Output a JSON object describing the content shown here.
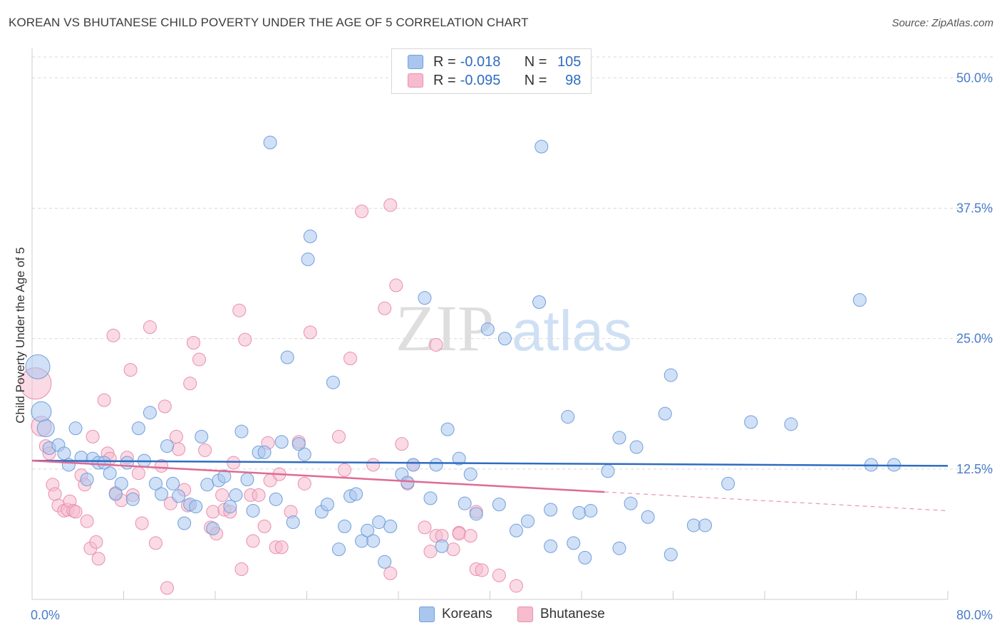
{
  "title": "KOREAN VS BHUTANESE CHILD POVERTY UNDER THE AGE OF 5 CORRELATION CHART",
  "source": "Source: ZipAtlas.com",
  "watermark": {
    "part1": "ZIP",
    "part2": "atlas"
  },
  "colors": {
    "korean_fill": "#a9c6ee",
    "korean_stroke": "#6f9fdc",
    "korean_line": "#2f6cc0",
    "bhutanese_fill": "#f6bccd",
    "bhutanese_stroke": "#e98fad",
    "bhutanese_line": "#e06a94",
    "tick_text": "#4a7cc8",
    "grid": "#d9d9d9"
  },
  "legend": {
    "rows": [
      {
        "r_label": "R =",
        "r_value": "-0.018",
        "n_label": "N =",
        "n_value": "105"
      },
      {
        "r_label": "R =",
        "r_value": "-0.095",
        "n_label": "N =",
        "n_value": "98"
      }
    ]
  },
  "bottom_legend": [
    "Koreans",
    "Bhutanese"
  ],
  "chart_data": {
    "type": "scatter",
    "title": "KOREAN VS BHUTANESE CHILD POVERTY UNDER THE AGE OF 5 CORRELATION CHART",
    "xlabel": "",
    "ylabel": "Child Poverty Under the Age of 5",
    "xlim": [
      0,
      80
    ],
    "ylim": [
      0,
      52
    ],
    "x_tick_labels": [
      "0.0%",
      "80.0%"
    ],
    "y_ticks": [
      12.5,
      25.0,
      37.5,
      50.0
    ],
    "y_tick_labels": [
      "12.5%",
      "25.0%",
      "37.5%",
      "50.0%"
    ],
    "grid": "horizontal dashed",
    "legend_placement": "top-center",
    "series": [
      {
        "name": "Koreans",
        "r": -0.018,
        "n": 105,
        "trend": {
          "x": [
            0,
            80
          ],
          "y": [
            13.3,
            12.8
          ]
        },
        "points": [
          [
            0.5,
            22.3
          ],
          [
            0.8,
            18.0
          ],
          [
            1.2,
            16.4
          ],
          [
            1.5,
            14.5
          ],
          [
            2.3,
            14.8
          ],
          [
            2.8,
            14.0
          ],
          [
            3.2,
            12.9
          ],
          [
            3.8,
            16.4
          ],
          [
            4.3,
            13.6
          ],
          [
            4.8,
            11.5
          ],
          [
            5.3,
            13.5
          ],
          [
            5.8,
            13.1
          ],
          [
            6.3,
            13.1
          ],
          [
            6.8,
            12.1
          ],
          [
            7.3,
            10.1
          ],
          [
            7.8,
            11.1
          ],
          [
            8.3,
            13.1
          ],
          [
            8.8,
            9.6
          ],
          [
            9.3,
            16.4
          ],
          [
            9.8,
            13.3
          ],
          [
            10.3,
            17.9
          ],
          [
            10.8,
            11.1
          ],
          [
            11.3,
            10.1
          ],
          [
            11.8,
            14.7
          ],
          [
            12.3,
            11.1
          ],
          [
            12.8,
            9.9
          ],
          [
            13.3,
            7.3
          ],
          [
            13.8,
            9.1
          ],
          [
            14.3,
            8.9
          ],
          [
            14.8,
            15.6
          ],
          [
            15.3,
            11.0
          ],
          [
            15.8,
            6.8
          ],
          [
            16.3,
            11.4
          ],
          [
            16.8,
            11.8
          ],
          [
            17.3,
            8.9
          ],
          [
            17.8,
            10.0
          ],
          [
            18.3,
            16.1
          ],
          [
            18.8,
            11.5
          ],
          [
            19.3,
            8.5
          ],
          [
            19.8,
            14.1
          ],
          [
            20.3,
            14.1
          ],
          [
            20.8,
            43.8
          ],
          [
            21.3,
            9.6
          ],
          [
            21.8,
            15.1
          ],
          [
            22.3,
            23.2
          ],
          [
            22.8,
            7.4
          ],
          [
            23.3,
            14.9
          ],
          [
            23.8,
            13.9
          ],
          [
            24.1,
            32.6
          ],
          [
            24.3,
            34.8
          ],
          [
            25.3,
            8.4
          ],
          [
            25.8,
            9.1
          ],
          [
            26.3,
            20.8
          ],
          [
            26.8,
            4.8
          ],
          [
            27.3,
            7.0
          ],
          [
            27.8,
            9.9
          ],
          [
            28.3,
            10.1
          ],
          [
            28.8,
            5.6
          ],
          [
            29.3,
            6.6
          ],
          [
            29.8,
            5.6
          ],
          [
            30.3,
            7.4
          ],
          [
            30.8,
            3.6
          ],
          [
            31.3,
            7.0
          ],
          [
            32.3,
            12.0
          ],
          [
            32.8,
            11.2
          ],
          [
            33.3,
            12.9
          ],
          [
            34.3,
            28.9
          ],
          [
            34.8,
            9.7
          ],
          [
            35.3,
            12.9
          ],
          [
            35.8,
            5.1
          ],
          [
            36.3,
            16.3
          ],
          [
            37.3,
            13.5
          ],
          [
            37.8,
            9.2
          ],
          [
            38.3,
            12.0
          ],
          [
            38.8,
            8.2
          ],
          [
            39.8,
            25.9
          ],
          [
            40.8,
            9.1
          ],
          [
            41.3,
            25.0
          ],
          [
            42.3,
            6.6
          ],
          [
            43.3,
            7.5
          ],
          [
            44.3,
            28.5
          ],
          [
            44.5,
            43.4
          ],
          [
            45.3,
            8.6
          ],
          [
            45.3,
            5.1
          ],
          [
            46.8,
            17.5
          ],
          [
            47.3,
            5.4
          ],
          [
            47.8,
            8.3
          ],
          [
            48.3,
            4.0
          ],
          [
            48.8,
            8.5
          ],
          [
            50.3,
            12.3
          ],
          [
            51.3,
            15.5
          ],
          [
            51.3,
            4.9
          ],
          [
            52.3,
            9.2
          ],
          [
            52.8,
            14.6
          ],
          [
            53.8,
            7.9
          ],
          [
            55.3,
            17.8
          ],
          [
            55.8,
            21.5
          ],
          [
            55.8,
            4.3
          ],
          [
            57.8,
            7.1
          ],
          [
            58.8,
            7.1
          ],
          [
            60.8,
            11.1
          ],
          [
            62.8,
            17.0
          ],
          [
            66.3,
            16.8
          ],
          [
            72.3,
            28.7
          ],
          [
            73.3,
            12.9
          ],
          [
            75.3,
            12.9
          ]
        ]
      },
      {
        "name": "Bhutanese",
        "r": -0.095,
        "n": 98,
        "trend": {
          "x": [
            0,
            50
          ],
          "y": [
            13.3,
            10.3
          ],
          "dashed_extension": {
            "x": [
              50,
              80
            ],
            "y": [
              10.3,
              8.5
            ]
          }
        },
        "points": [
          [
            0.3,
            20.7
          ],
          [
            0.8,
            16.6
          ],
          [
            1.2,
            14.7
          ],
          [
            1.5,
            14.0
          ],
          [
            1.8,
            11.0
          ],
          [
            2.0,
            10.1
          ],
          [
            2.3,
            9.0
          ],
          [
            2.8,
            8.5
          ],
          [
            3.1,
            8.6
          ],
          [
            3.3,
            9.4
          ],
          [
            3.6,
            8.5
          ],
          [
            3.8,
            8.4
          ],
          [
            4.3,
            11.9
          ],
          [
            4.6,
            11.0
          ],
          [
            4.8,
            7.5
          ],
          [
            5.1,
            4.9
          ],
          [
            5.3,
            15.6
          ],
          [
            5.6,
            5.5
          ],
          [
            5.8,
            3.9
          ],
          [
            6.3,
            19.1
          ],
          [
            6.6,
            14.0
          ],
          [
            6.8,
            13.5
          ],
          [
            7.1,
            25.3
          ],
          [
            7.3,
            10.2
          ],
          [
            7.8,
            9.5
          ],
          [
            8.3,
            13.6
          ],
          [
            8.6,
            22.0
          ],
          [
            8.8,
            10.0
          ],
          [
            9.3,
            12.1
          ],
          [
            9.6,
            7.3
          ],
          [
            10.3,
            26.1
          ],
          [
            10.8,
            5.4
          ],
          [
            11.3,
            12.8
          ],
          [
            11.6,
            18.5
          ],
          [
            11.8,
            1.1
          ],
          [
            12.1,
            9.2
          ],
          [
            12.6,
            15.6
          ],
          [
            12.8,
            14.4
          ],
          [
            13.3,
            10.5
          ],
          [
            13.6,
            9.0
          ],
          [
            13.8,
            20.7
          ],
          [
            14.1,
            24.6
          ],
          [
            14.6,
            23.0
          ],
          [
            15.1,
            14.3
          ],
          [
            15.6,
            6.9
          ],
          [
            15.8,
            8.4
          ],
          [
            16.1,
            6.3
          ],
          [
            16.6,
            10.0
          ],
          [
            16.8,
            8.6
          ],
          [
            17.3,
            8.4
          ],
          [
            17.6,
            13.1
          ],
          [
            18.1,
            27.7
          ],
          [
            18.3,
            2.9
          ],
          [
            18.6,
            24.9
          ],
          [
            19.1,
            10.0
          ],
          [
            19.3,
            5.6
          ],
          [
            19.8,
            10.0
          ],
          [
            20.3,
            7.0
          ],
          [
            20.6,
            15.0
          ],
          [
            20.8,
            11.4
          ],
          [
            21.3,
            5.0
          ],
          [
            21.6,
            12.0
          ],
          [
            21.8,
            5.0
          ],
          [
            22.6,
            8.4
          ],
          [
            23.3,
            15.1
          ],
          [
            23.8,
            11.1
          ],
          [
            24.3,
            25.6
          ],
          [
            26.8,
            15.6
          ],
          [
            27.3,
            12.4
          ],
          [
            27.8,
            23.1
          ],
          [
            28.8,
            37.2
          ],
          [
            29.8,
            12.9
          ],
          [
            30.8,
            27.9
          ],
          [
            31.3,
            2.5
          ],
          [
            31.3,
            37.8
          ],
          [
            31.8,
            30.1
          ],
          [
            32.3,
            14.9
          ],
          [
            32.8,
            11.1
          ],
          [
            33.3,
            12.9
          ],
          [
            34.3,
            6.9
          ],
          [
            34.8,
            4.6
          ],
          [
            35.3,
            24.4
          ],
          [
            35.3,
            6.1
          ],
          [
            35.8,
            6.1
          ],
          [
            36.8,
            4.8
          ],
          [
            37.3,
            6.4
          ],
          [
            37.3,
            6.3
          ],
          [
            38.3,
            6.1
          ],
          [
            38.8,
            2.9
          ],
          [
            38.8,
            8.4
          ],
          [
            39.3,
            2.8
          ],
          [
            40.8,
            2.3
          ],
          [
            42.3,
            1.3
          ]
        ]
      }
    ]
  }
}
